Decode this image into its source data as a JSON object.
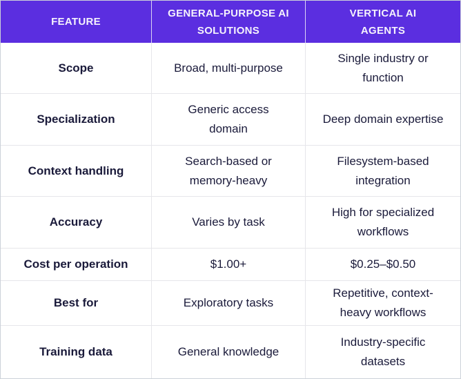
{
  "colors": {
    "header_bg": "#5b2ee0",
    "header_text": "#f5f2fc",
    "body_text": "#1a1a3a",
    "row_bg": "#ffffff",
    "inner_border": "#e6e6ea",
    "outer_border": "#ccd1d9"
  },
  "table": {
    "headers": {
      "feature": "FEATURE",
      "general_purpose": "GENERAL-PURPOSE AI SOLUTIONS",
      "vertical_ai": "VERTICAL AI AGENTS"
    },
    "rows": [
      {
        "feature": "Scope",
        "general_purpose": "Broad, multi-purpose",
        "vertical_ai": "Single industry or function"
      },
      {
        "feature": "Specialization",
        "general_purpose": "Generic access domain",
        "vertical_ai": "Deep domain expertise"
      },
      {
        "feature": "Context handling",
        "general_purpose": "Search-based or memory-heavy",
        "vertical_ai": "Filesystem-based integration"
      },
      {
        "feature": "Accuracy",
        "general_purpose": "Varies by task",
        "vertical_ai": "High for specialized workflows"
      },
      {
        "feature": "Cost per operation",
        "general_purpose": "$1.00+",
        "vertical_ai": "$0.25–$0.50"
      },
      {
        "feature": "Best for",
        "general_purpose": "Exploratory tasks",
        "vertical_ai": "Repetitive, context-heavy workflows"
      },
      {
        "feature": "Training data",
        "general_purpose": "General knowledge",
        "vertical_ai": "Industry-specific datasets"
      }
    ]
  }
}
